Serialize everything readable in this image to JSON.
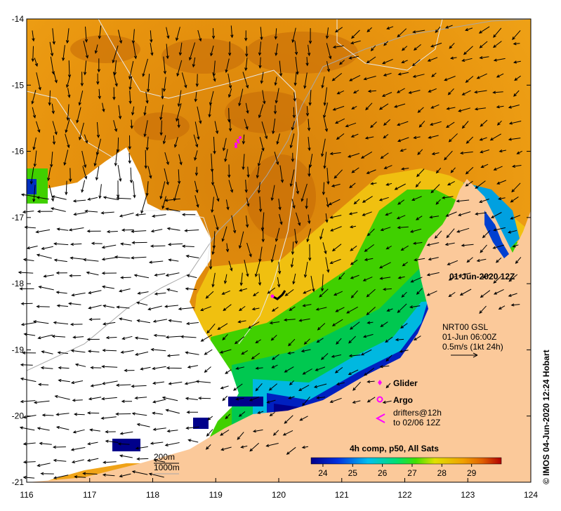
{
  "map": {
    "lon_ticks": [
      "116",
      "117",
      "118",
      "119",
      "120",
      "121",
      "122",
      "123",
      "124"
    ],
    "lat_ticks": [
      "-14",
      "-15",
      "-16",
      "-17",
      "-18",
      "-19",
      "-20",
      "-21"
    ],
    "lon_range": [
      116,
      124
    ],
    "lat_range": [
      -21,
      -14
    ],
    "timestamp": "01-Jun-2020 12Z",
    "currents": {
      "line1": "NRT00 GSL",
      "line2": "01-Jun 06:00Z",
      "line3": "0.5m/s (1kt 24h)"
    },
    "legend": {
      "glider": "Glider",
      "argo": "Argo",
      "drifters_line1": "drifters@12h",
      "drifters_line2": "to 02/06 12Z",
      "marker_color": "#ff00ff"
    },
    "colorbar": {
      "title": "4h comp, p50, All Sats",
      "ticks": [
        "24",
        "25",
        "26",
        "27",
        "28",
        "29"
      ],
      "range": [
        23.6,
        30
      ]
    },
    "isobaths": {
      "line1": "200m",
      "line2": "1000m"
    },
    "credit": "© IMOS 04-Jun-2020 12:24 Hobart",
    "colors": {
      "land": "#fbc99a",
      "warm_sea": "#e8940e",
      "no_data": "#ffffff"
    }
  }
}
